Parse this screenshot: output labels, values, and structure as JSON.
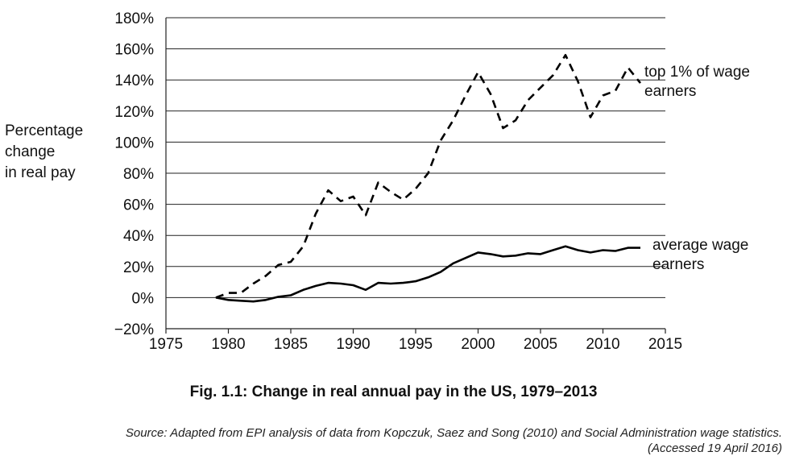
{
  "chart_data": {
    "type": "line",
    "title": "Fig. 1.1: Change in real annual pay in the US, 1979–2013",
    "ylabel_lines": [
      "Percentage",
      "change",
      "in real pay"
    ],
    "xlabel": "",
    "xlim": [
      1975,
      2015
    ],
    "ylim": [
      -20,
      180
    ],
    "x_ticks": [
      1975,
      1980,
      1985,
      1990,
      1995,
      2000,
      2005,
      2010,
      2015
    ],
    "y_ticks": [
      -20,
      0,
      20,
      40,
      60,
      80,
      100,
      120,
      140,
      160,
      180
    ],
    "y_tick_labels": [
      "−20%",
      "0%",
      "20%",
      "40%",
      "60%",
      "80%",
      "100%",
      "120%",
      "140%",
      "160%",
      "180%"
    ],
    "grid": "horizontal",
    "legend": "inline labels at right",
    "x": [
      1979,
      1980,
      1981,
      1982,
      1983,
      1984,
      1985,
      1986,
      1987,
      1988,
      1989,
      1990,
      1991,
      1992,
      1993,
      1994,
      1995,
      1996,
      1997,
      1998,
      1999,
      2000,
      2001,
      2002,
      2003,
      2004,
      2005,
      2006,
      2007,
      2008,
      2009,
      2010,
      2011,
      2012,
      2013
    ],
    "series": [
      {
        "name": "top 1% of wage earners",
        "label_lines": [
          "top 1% of wage",
          "earners"
        ],
        "style": "dashed",
        "values": [
          0,
          3,
          3,
          9,
          14,
          21,
          23,
          33,
          54,
          69,
          62,
          65,
          53,
          74,
          68,
          63,
          70,
          80,
          101,
          114,
          130,
          145,
          131,
          109,
          114,
          127,
          135,
          143,
          156,
          139,
          116,
          130,
          133,
          148,
          138
        ]
      },
      {
        "name": "average wage earners",
        "label_lines": [
          "average wage",
          "earners"
        ],
        "style": "solid",
        "values": [
          0,
          -1.5,
          -2,
          -2.5,
          -1.5,
          0.5,
          1.5,
          5,
          7.5,
          9.5,
          9,
          8,
          5,
          9.5,
          9,
          9.5,
          10.5,
          13,
          16.5,
          22,
          25.5,
          29,
          28,
          26.5,
          27,
          28.5,
          28,
          30.5,
          33,
          30.5,
          29,
          30.5,
          30,
          32,
          32
        ]
      }
    ]
  },
  "source": {
    "line1": "Source: Adapted from EPI analysis of data from Kopczuk, Saez and Song (2010) and Social Administration wage statistics.",
    "line2": "(Accessed 19 April 2016)"
  }
}
